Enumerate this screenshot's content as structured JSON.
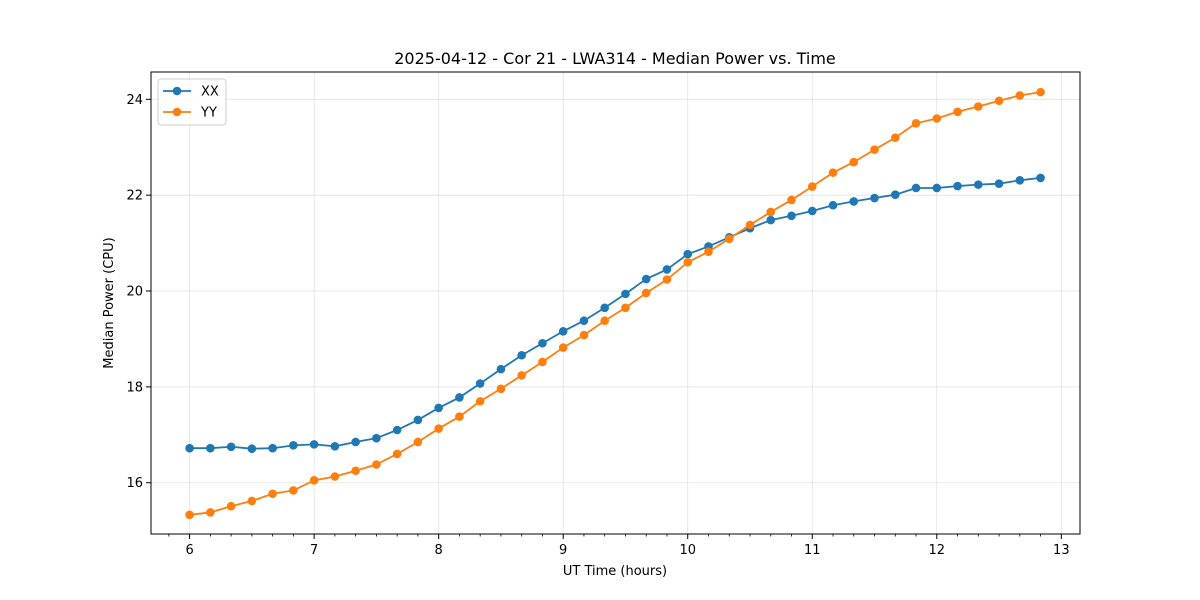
{
  "chart_data": {
    "type": "line",
    "title": "2025-04-12 - Cor 21 - LWA314 - Median Power vs. Time",
    "xlabel": "UT Time (hours)",
    "ylabel": "Median Power (CPU)",
    "xlim": [
      5.69,
      13.15
    ],
    "ylim": [
      14.93,
      24.57
    ],
    "xticks": [
      6,
      7,
      8,
      9,
      10,
      11,
      12,
      13
    ],
    "yticks": [
      16,
      18,
      20,
      22,
      24
    ],
    "grid": true,
    "legend_position": "top-left",
    "x": [
      6.0,
      6.1667,
      6.3333,
      6.5,
      6.6667,
      6.8333,
      7.0,
      7.1667,
      7.3333,
      7.5,
      7.6667,
      7.8333,
      8.0,
      8.1667,
      8.3333,
      8.5,
      8.6667,
      8.8333,
      9.0,
      9.1667,
      9.3333,
      9.5,
      9.6667,
      9.8333,
      10.0,
      10.1667,
      10.3333,
      10.5,
      10.6667,
      10.8333,
      11.0,
      11.1667,
      11.3333,
      11.5,
      11.6667,
      11.8333,
      12.0,
      12.1667,
      12.3333,
      12.5,
      12.6667,
      12.8333
    ],
    "series": [
      {
        "name": "XX",
        "color": "#1f77b4",
        "values": [
          16.72,
          16.72,
          16.75,
          16.71,
          16.72,
          16.78,
          16.8,
          16.76,
          16.85,
          16.93,
          17.1,
          17.31,
          17.56,
          17.78,
          18.07,
          18.37,
          18.66,
          18.91,
          19.16,
          19.38,
          19.65,
          19.94,
          20.25,
          20.45,
          20.77,
          20.93,
          21.12,
          21.31,
          21.48,
          21.57,
          21.67,
          21.79,
          21.87,
          21.94,
          22.01,
          22.15,
          22.15,
          22.19,
          22.22,
          22.24,
          22.31,
          22.36
        ]
      },
      {
        "name": "YY",
        "color": "#ff7f0e",
        "values": [
          15.33,
          15.38,
          15.51,
          15.62,
          15.77,
          15.84,
          16.05,
          16.13,
          16.25,
          16.38,
          16.6,
          16.85,
          17.13,
          17.38,
          17.7,
          17.96,
          18.24,
          18.52,
          18.82,
          19.08,
          19.38,
          19.65,
          19.96,
          20.24,
          20.6,
          20.82,
          21.09,
          21.38,
          21.65,
          21.9,
          22.18,
          22.47,
          22.69,
          22.95,
          23.2,
          23.5,
          23.6,
          23.74,
          23.85,
          23.97,
          24.08,
          24.15
        ]
      }
    ]
  }
}
